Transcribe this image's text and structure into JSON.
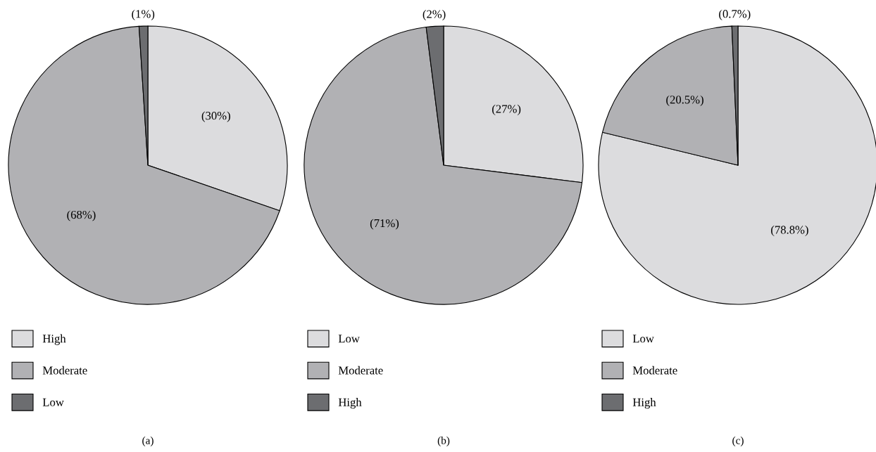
{
  "chart_data": [
    {
      "type": "pie",
      "categories": [
        "High",
        "Moderate",
        "Low"
      ],
      "values": [
        30,
        68,
        1
      ],
      "colors": [
        "#dcdcde",
        "#b1b1b4",
        "#6c6d70"
      ],
      "value_labels": [
        "(30%)",
        "(68%)",
        "(1%)"
      ],
      "legend": "bottom",
      "annotations": [
        "(a)"
      ]
    },
    {
      "type": "pie",
      "categories": [
        "Low",
        "Moderate",
        "High"
      ],
      "values": [
        27,
        71,
        2
      ],
      "colors": [
        "#dcdcde",
        "#b1b1b4",
        "#6c6d70"
      ],
      "value_labels": [
        "(27%)",
        "(71%)",
        "(2%)"
      ],
      "legend": "bottom",
      "annotations": [
        "(b)"
      ]
    },
    {
      "type": "pie",
      "categories": [
        "Low",
        "Moderate",
        "High"
      ],
      "values": [
        78.8,
        20.5,
        0.7
      ],
      "colors": [
        "#dcdcde",
        "#b1b1b4",
        "#6c6d70"
      ],
      "value_labels": [
        "(78.8%)",
        "(20.5%)",
        "(0.7%)"
      ],
      "legend": "bottom",
      "annotations": [
        "(c)"
      ]
    }
  ]
}
